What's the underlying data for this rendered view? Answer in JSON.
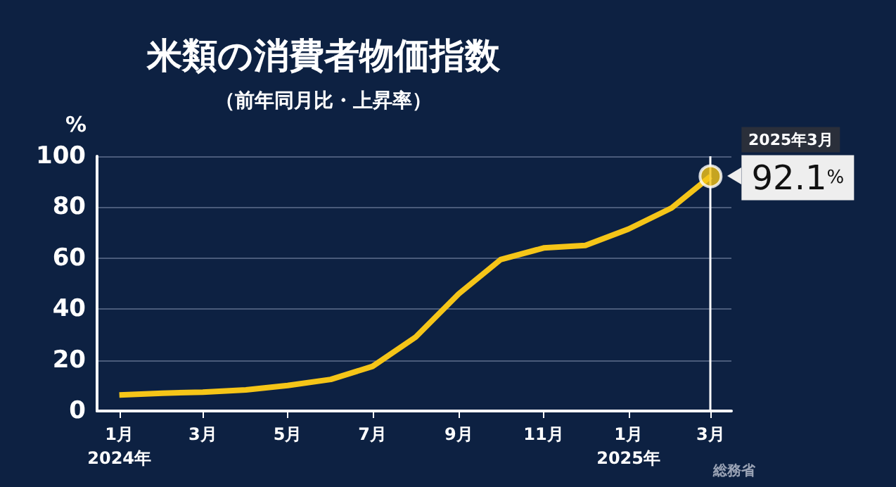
{
  "chart_data": {
    "type": "line",
    "title": "米類の消費者物価指数",
    "subtitle": "（前年同月比・上昇率）",
    "ylabel": "%",
    "x": [
      "2024-01",
      "2024-02",
      "2024-03",
      "2024-04",
      "2024-05",
      "2024-06",
      "2024-07",
      "2024-08",
      "2024-09",
      "2024-10",
      "2024-11",
      "2024-12",
      "2025-01",
      "2025-02",
      "2025-03"
    ],
    "series": [
      {
        "color": "#f5c518",
        "values": [
          6.3,
          7,
          7.4,
          8.3,
          10,
          12.4,
          17.5,
          29,
          46,
          59.4,
          64,
          65,
          71.4,
          79.7,
          92.1
        ]
      }
    ],
    "xlim": [
      "2023-12-16",
      "2025-03-16"
    ],
    "xticks": [
      {
        "value": "2024-01",
        "label": "1月\n2024年"
      },
      {
        "value": "2024-03",
        "label": "3月"
      },
      {
        "value": "2024-05",
        "label": "5月"
      },
      {
        "value": "2024-07",
        "label": "7月"
      },
      {
        "value": "2024-09",
        "label": "9月"
      },
      {
        "value": "2024-11",
        "label": "11月"
      },
      {
        "value": "2025-01",
        "label": "1月\n2025年"
      },
      {
        "value": "2025-03",
        "label": "3月"
      }
    ],
    "ylim": [
      0,
      100
    ],
    "yticks": [
      0,
      20,
      40,
      60,
      80,
      100
    ],
    "grid": "y",
    "marker": "none",
    "line_style": "solid",
    "ref_lines": [
      {
        "axis": "x",
        "value": "2025-03",
        "color": "#ffffff"
      }
    ],
    "annotations": [
      "2025年3月",
      "92.1%",
      "総務省"
    ]
  }
}
